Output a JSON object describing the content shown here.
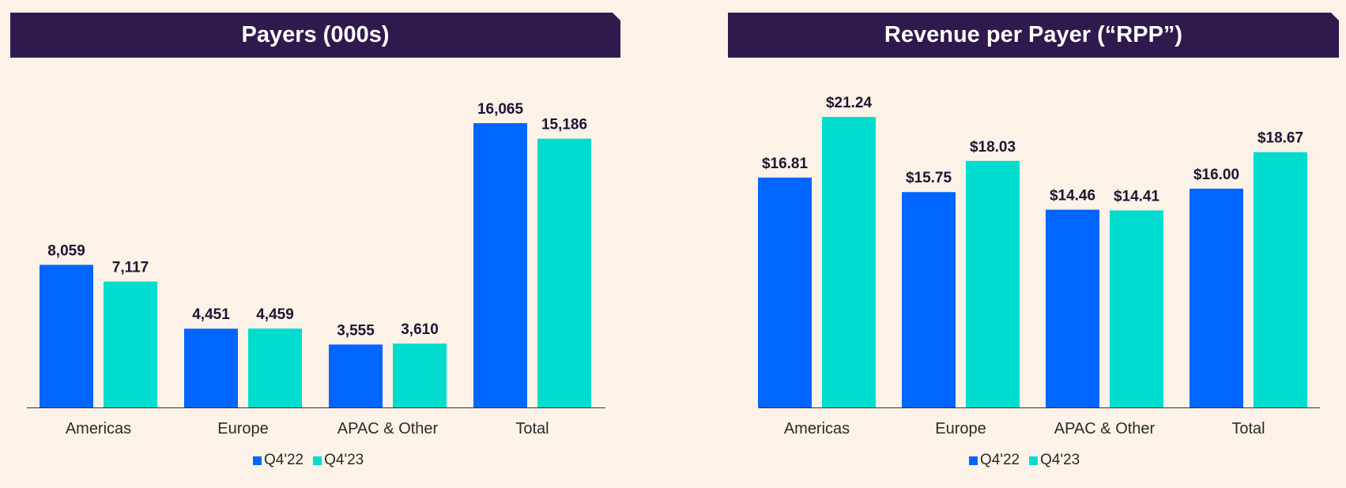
{
  "colors": {
    "background": "#FDF2E7",
    "banner": "#2F1A4D",
    "series_q422": "#0066FF",
    "series_q423": "#00DCCD",
    "value_text": "#1E1433",
    "axis": "#333333"
  },
  "chart_data": [
    {
      "type": "bar",
      "title": "Payers (000s)",
      "categories": [
        "Americas",
        "Europe",
        "APAC & Other",
        "Total"
      ],
      "series": [
        {
          "name": "Q4'22",
          "values": [
            8059,
            4451,
            3555,
            16065
          ],
          "labels": [
            "8,059",
            "4,451",
            "3,555",
            "16,065"
          ]
        },
        {
          "name": "Q4'23",
          "values": [
            7117,
            4459,
            3610,
            15186
          ],
          "labels": [
            "7,117",
            "4,459",
            "3,610",
            "15,186"
          ]
        }
      ],
      "xlabel": "",
      "ylabel": "",
      "ylim": [
        0,
        17000
      ],
      "grid": false,
      "legend": "bottom-center"
    },
    {
      "type": "bar",
      "title": "Revenue per Payer (“RPP”)",
      "categories": [
        "Americas",
        "Europe",
        "APAC & Other",
        "Total"
      ],
      "series": [
        {
          "name": "Q4'22",
          "values": [
            16.81,
            15.75,
            14.46,
            16.0
          ],
          "labels": [
            "$16.81",
            "$15.75",
            "$14.46",
            "$16.00"
          ]
        },
        {
          "name": "Q4'23",
          "values": [
            21.24,
            18.03,
            14.41,
            18.67
          ],
          "labels": [
            "$21.24",
            "$18.03",
            "$14.41",
            "$18.67"
          ]
        }
      ],
      "xlabel": "",
      "ylabel": "",
      "ylim": [
        0,
        22
      ],
      "grid": false,
      "legend": "bottom-center"
    }
  ]
}
